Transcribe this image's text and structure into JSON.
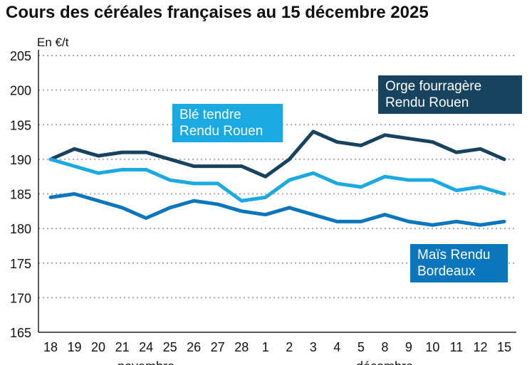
{
  "chart_data": {
    "type": "line",
    "title": "Cours des céréales françaises au 15 décembre 2025",
    "ylabel": "En €/t",
    "ylim": [
      165,
      205
    ],
    "yticks": [
      165,
      170,
      175,
      180,
      185,
      190,
      195,
      200,
      205
    ],
    "grid": true,
    "categories": [
      "18",
      "19",
      "20",
      "21",
      "24",
      "25",
      "26",
      "27",
      "28",
      "1",
      "2",
      "3",
      "4",
      "5",
      "8",
      "9",
      "10",
      "11",
      "12",
      "15"
    ],
    "month_labels": [
      "novembre",
      "décembre"
    ],
    "series": [
      {
        "name": "Orge fourragère Rendu Rouen",
        "color": "#17435e",
        "values": [
          190,
          191.5,
          190.5,
          191,
          191,
          190,
          189,
          189,
          189,
          187.5,
          190,
          194,
          192.5,
          192,
          193.5,
          193,
          192.5,
          191,
          191.5,
          190
        ]
      },
      {
        "name": "Blé tendre Rendu Rouen",
        "color": "#1aa9e1",
        "values": [
          190,
          189,
          188,
          188.5,
          188.5,
          187,
          186.5,
          186.5,
          184,
          184.5,
          187,
          188,
          186.5,
          186,
          187.5,
          187,
          187,
          185.5,
          186,
          185
        ]
      },
      {
        "name": "Maïs Rendu Bordeaux",
        "color": "#0b76bb",
        "values": [
          184.5,
          185,
          184,
          183,
          181.5,
          183,
          184,
          183.5,
          182.5,
          182,
          183,
          182,
          181,
          181,
          182,
          181,
          180.5,
          181,
          180.5,
          181
        ]
      }
    ]
  }
}
